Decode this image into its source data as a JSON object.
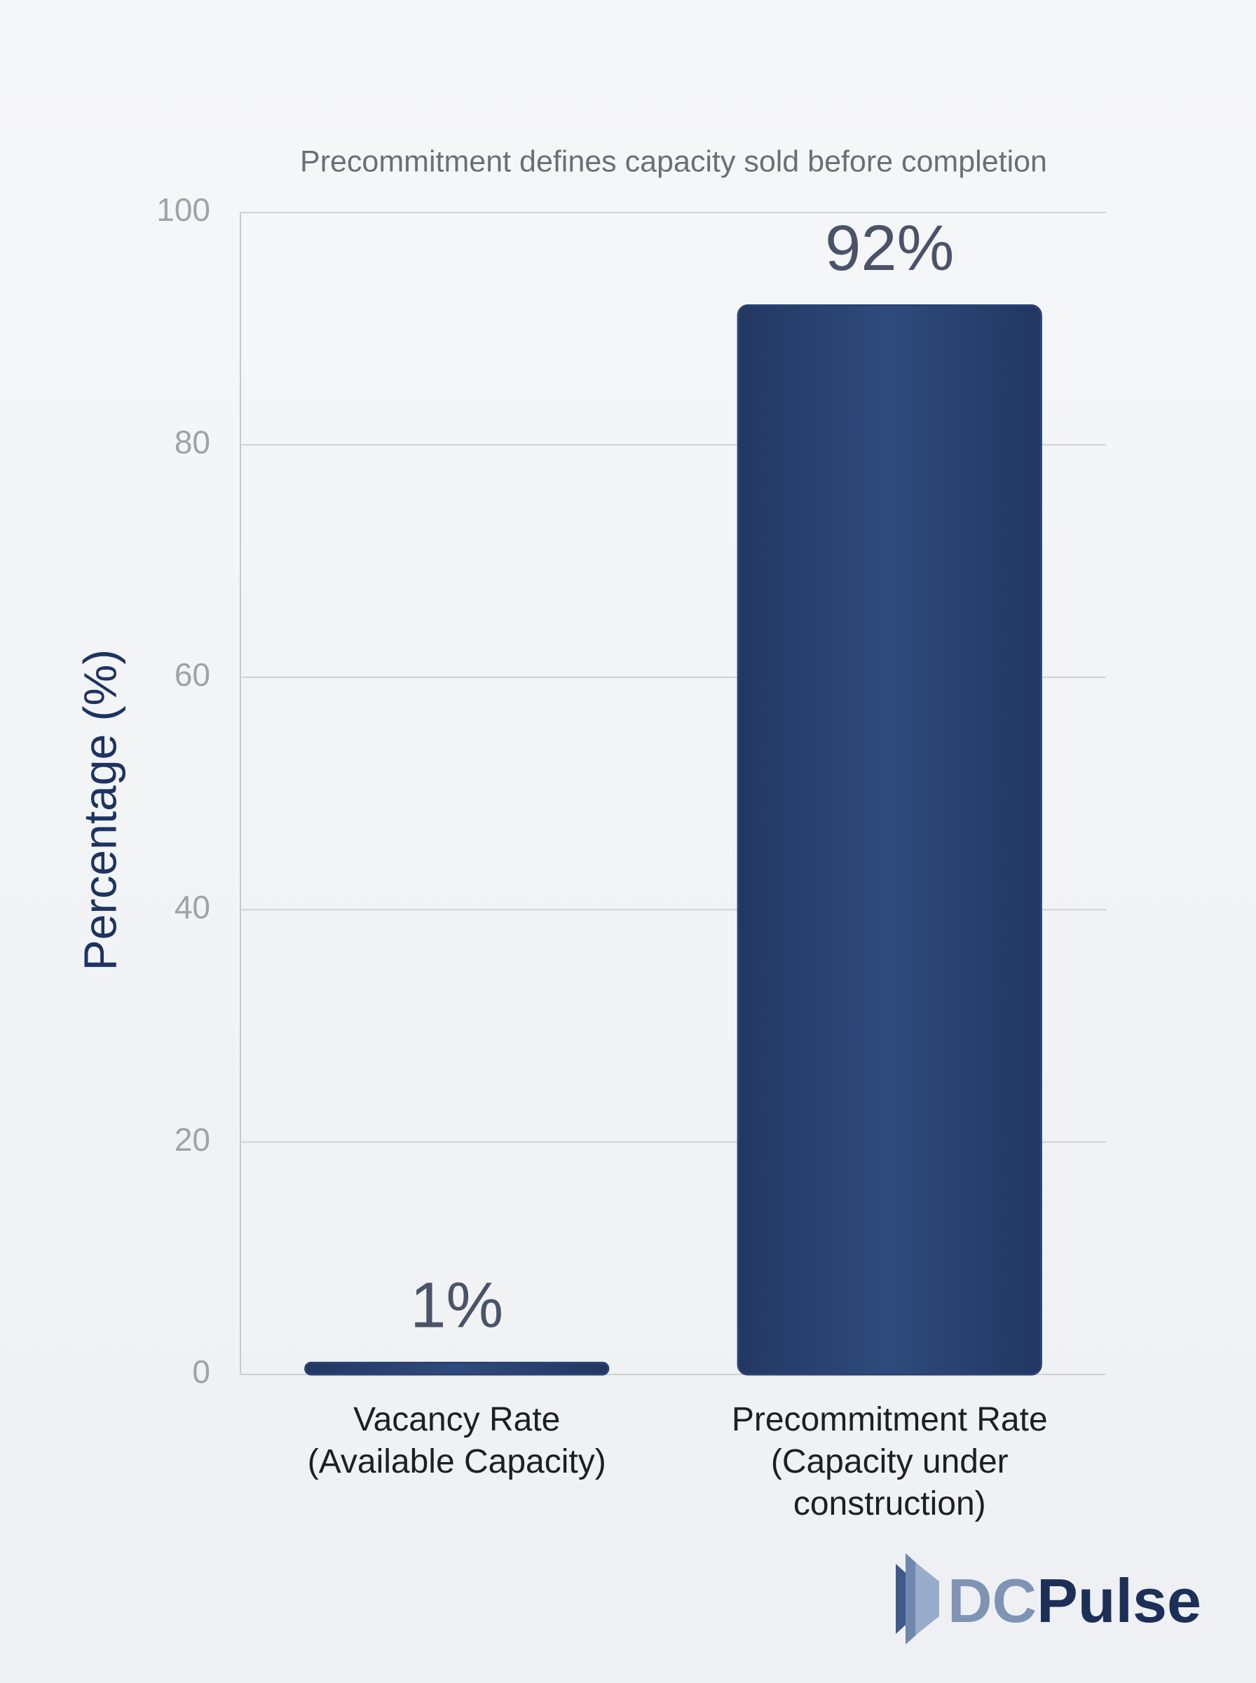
{
  "chart_data": {
    "type": "bar",
    "title": "Precommitment defines capacity sold before completion",
    "y_label": "Percentage (%)",
    "categories": [
      "Vacancy Rate\n(Available Capacity)",
      "Precommitment Rate\n(Capacity under construction)"
    ],
    "values": [
      1,
      92
    ],
    "value_labels": [
      "1%",
      "92%"
    ],
    "color": "#2a4372",
    "ylim": [
      0,
      100
    ],
    "yticks": [
      0,
      20,
      40,
      60,
      80,
      100
    ],
    "grid": true
  },
  "logo": {
    "part1": "DC",
    "part2": "Pulse"
  }
}
